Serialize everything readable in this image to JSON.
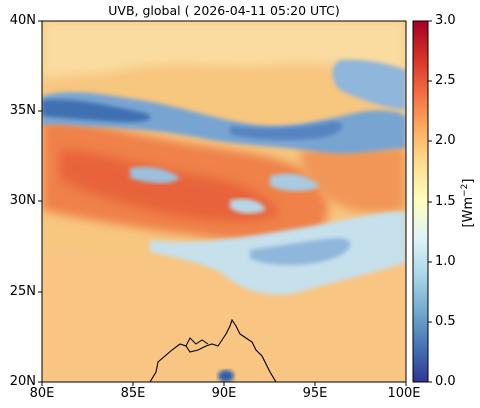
{
  "title": "UVB, global ( 2026-04-11 05:20 UTC)",
  "map": {
    "lon_range": [
      80,
      100
    ],
    "lat_range": [
      20,
      40
    ],
    "x_ticks": [
      "80E",
      "85E",
      "90E",
      "95E",
      "100E"
    ],
    "y_ticks": [
      "40N",
      "35N",
      "30N",
      "25N",
      "20N"
    ],
    "features": [
      "coastline"
    ]
  },
  "colorbar": {
    "label_base": "[Wm",
    "label_exp": "−2",
    "label_close": "]",
    "ticks": [
      "3.0",
      "2.5",
      "2.0",
      "1.5",
      "1.0",
      "0.5",
      "0.0"
    ],
    "range": [
      0,
      3
    ],
    "colormap": "RdYlBu_r",
    "colors": [
      "#313695",
      "#4575b4",
      "#74add1",
      "#abd9e9",
      "#e0f3f8",
      "#ffffbf",
      "#fee090",
      "#fdae61",
      "#f46d43",
      "#d73027",
      "#a50026"
    ]
  },
  "colors": {
    "background_field": "#f9c77e",
    "high_field": "#ef8048",
    "cloud_low": "#5c8cc4",
    "coast": "#000000"
  }
}
